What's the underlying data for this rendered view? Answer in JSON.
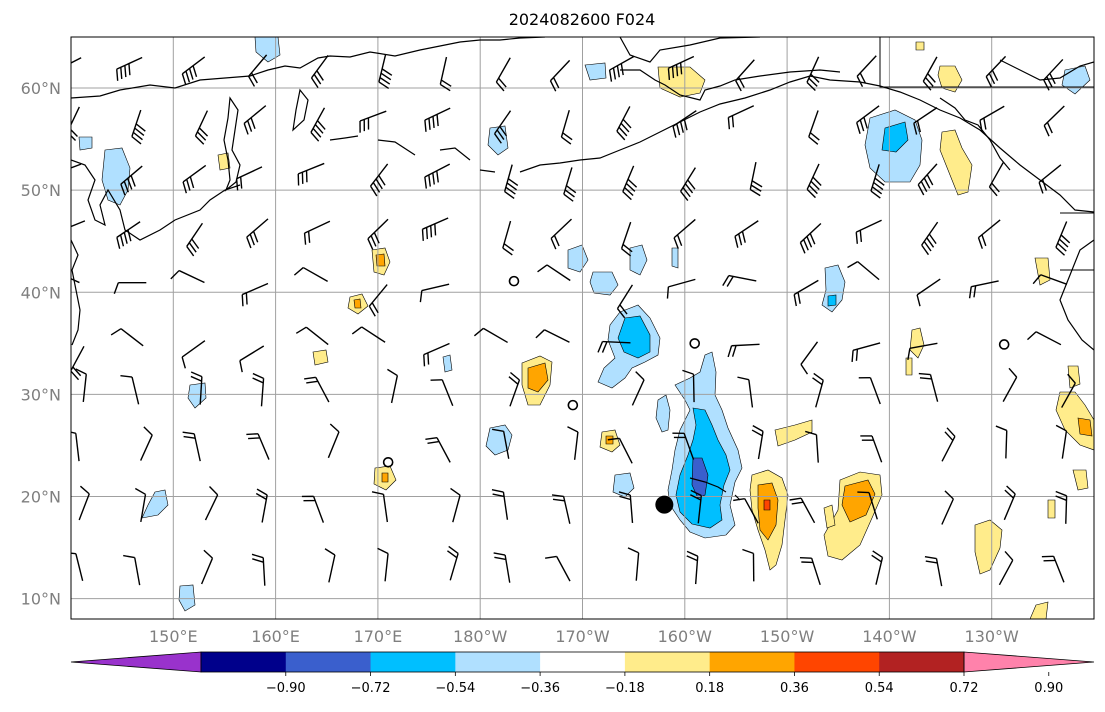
{
  "title": "2024082600 F024",
  "map": {
    "lon_range": [
      140,
      240
    ],
    "lat_range": [
      8,
      65
    ],
    "lon_ticks": [
      {
        "lon": 150,
        "label": "150°E"
      },
      {
        "lon": 160,
        "label": "160°E"
      },
      {
        "lon": 170,
        "label": "170°E"
      },
      {
        "lon": 180,
        "label": "180°W"
      },
      {
        "lon": 190,
        "label": "170°W"
      },
      {
        "lon": 200,
        "label": "160°W"
      },
      {
        "lon": 210,
        "label": "150°W"
      },
      {
        "lon": 220,
        "label": "140°W"
      },
      {
        "lon": 230,
        "label": "130°W"
      }
    ],
    "lat_ticks": [
      {
        "lat": 10,
        "label": "10°N"
      },
      {
        "lat": 20,
        "label": "20°N"
      },
      {
        "lat": 30,
        "label": "30°N"
      },
      {
        "lat": 40,
        "label": "40°N"
      },
      {
        "lat": 50,
        "label": "50°N"
      },
      {
        "lat": 60,
        "label": "60°N"
      }
    ],
    "grid": true,
    "marker": {
      "lon": 198,
      "lat": 19.2
    }
  },
  "colorbar": {
    "colors": [
      "#9932cc",
      "#00008b",
      "#3a5fcd",
      "#00bfff",
      "#b0e0ff",
      "#ffffff",
      "#ffec8b",
      "#ffa500",
      "#ff4500",
      "#b22222",
      "#ff82ab"
    ],
    "labels": [
      "−0.90",
      "−0.72",
      "−0.54",
      "−0.36",
      "−0.18",
      "0.18",
      "0.36",
      "0.54",
      "0.72",
      "0.90"
    ],
    "extend": "both"
  },
  "colors": {
    "light_blue": "#b0e0ff",
    "deep_sky": "#00bfff",
    "royal": "#3a5fcd",
    "yellow": "#ffec8b",
    "orange": "#ffa500",
    "red_orange": "#ff4500"
  }
}
